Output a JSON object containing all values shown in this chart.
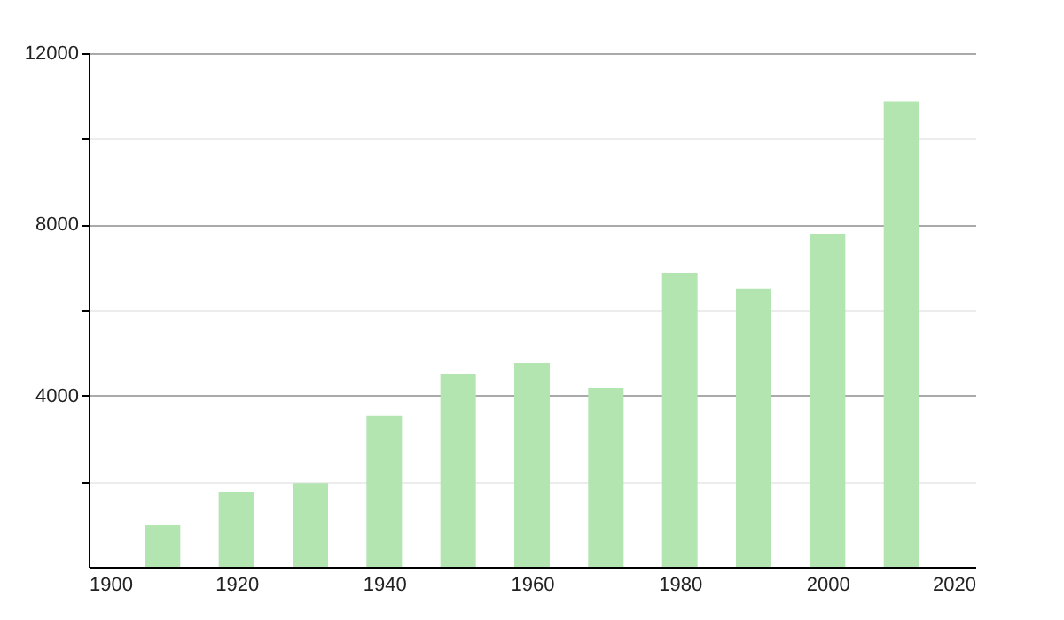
{
  "chart_data": {
    "type": "bar",
    "x": [
      1910,
      1920,
      1930,
      1940,
      1950,
      1960,
      1970,
      1980,
      1990,
      2000,
      2010
    ],
    "values": [
      970,
      1750,
      1960,
      3520,
      4510,
      4760,
      4180,
      6870,
      6500,
      7780,
      10870
    ],
    "color": "#b2e5b0",
    "xlim": [
      1900,
      2020
    ],
    "xticks": [
      1900,
      1920,
      1940,
      1960,
      1980,
      2000,
      2020
    ],
    "ylim": [
      0,
      12000
    ],
    "yticks": [
      {
        "value": 0,
        "label": null
      },
      {
        "value": 2000,
        "label": null
      },
      4000,
      {
        "value": 6000,
        "label": null
      },
      8000,
      {
        "value": 10000,
        "label": null
      },
      12000
    ],
    "grid": "y"
  }
}
